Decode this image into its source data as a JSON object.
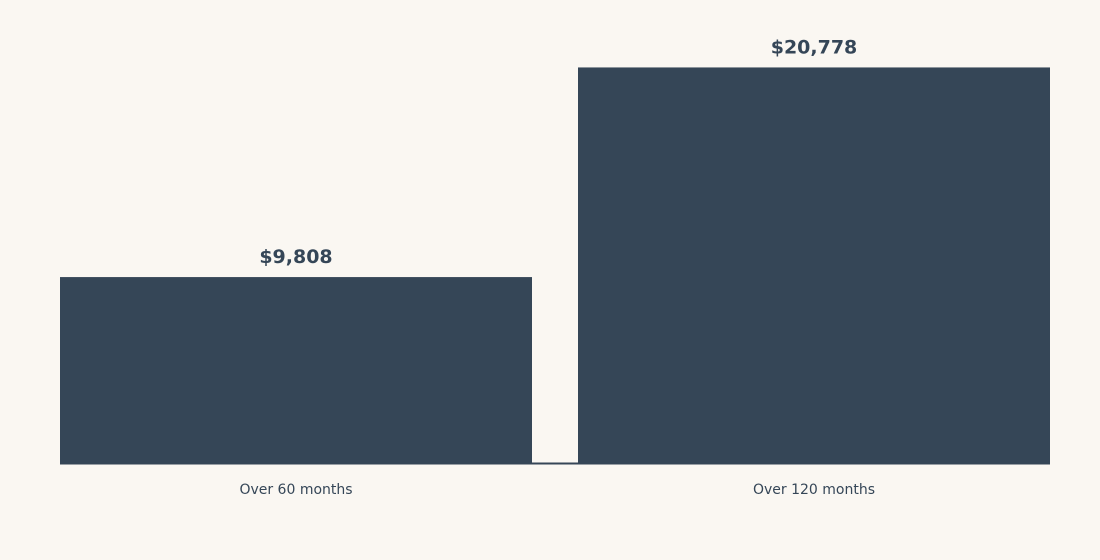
{
  "chart_data": {
    "type": "bar",
    "categories": [
      "Over 60 months",
      "Over 120 months"
    ],
    "values": [
      9808,
      20778
    ],
    "value_labels": [
      "$9,808",
      "$20,778"
    ],
    "title": "",
    "xlabel": "",
    "ylabel": "",
    "ylim": [
      0,
      21900
    ],
    "grid": false,
    "legend": "none",
    "colors": {
      "bar": "#354657",
      "axis": "#354657",
      "value_text": "#354657",
      "tick_text": "#354657",
      "background": "#faf7f2"
    }
  }
}
